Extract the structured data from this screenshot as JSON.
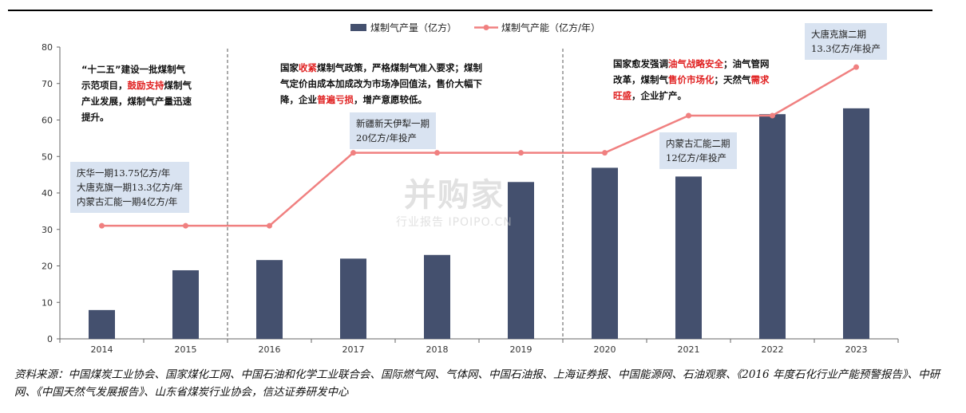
{
  "chart_data": {
    "type": "bar+line",
    "categories": [
      "2014",
      "2015",
      "2016",
      "2017",
      "2018",
      "2019",
      "2020",
      "2021",
      "2022",
      "2023"
    ],
    "series": [
      {
        "name": "煤制气产量（亿方）",
        "type": "bar",
        "color": "#44506e",
        "values": [
          7.9,
          18.8,
          21.6,
          22.0,
          23.0,
          43.0,
          46.9,
          44.5,
          61.6,
          63.2
        ]
      },
      {
        "name": "煤制气产能（亿方/年）",
        "type": "line",
        "color": "#f08080",
        "values": [
          31,
          31,
          31,
          51,
          51,
          51,
          51,
          61.2,
          61.2,
          74.5
        ]
      }
    ],
    "y_ticks": [
      0,
      10,
      20,
      30,
      40,
      50,
      60,
      70,
      80
    ],
    "ylim": [
      0,
      80
    ],
    "title": "",
    "xlabel": "",
    "ylabel": ""
  },
  "annotations": {
    "box1": [
      "庆华一期13.75亿方/年",
      "大唐克旗一期13.3亿方/年",
      "内蒙古汇能一期4亿方/年"
    ],
    "box2": [
      "新疆新天伊犁一期",
      "20亿方/年投产"
    ],
    "box3": [
      "内蒙古汇能二期",
      "12亿方/年投产"
    ],
    "box4": [
      "大唐克旗二期",
      "13.3亿方/年投产"
    ]
  },
  "notes": {
    "n1": [
      [
        {
          "t": "“十二五”建设一批煤制气"
        }
      ],
      [
        {
          "t": "示范项目，"
        },
        {
          "t": "鼓励支持",
          "hl": true
        },
        {
          "t": "煤制气"
        }
      ],
      [
        {
          "t": "产业发展，煤制气产量迅速"
        }
      ],
      [
        {
          "t": "提升。"
        }
      ]
    ],
    "n2": [
      [
        {
          "t": "国家"
        },
        {
          "t": "收紧",
          "hl": true
        },
        {
          "t": "煤制气政策，严格煤制气准入要求；煤制"
        }
      ],
      [
        {
          "t": "气定价由成本加成改为市场净回值法，售价大幅下"
        }
      ],
      [
        {
          "t": "降，企业"
        },
        {
          "t": "普遍亏损",
          "hl": true
        },
        {
          "t": "，增产意愿较低。"
        }
      ]
    ],
    "n3": [
      [
        {
          "t": "国家愈发强调"
        },
        {
          "t": "油气战略安全",
          "hl": true
        },
        {
          "t": "；油气管网"
        }
      ],
      [
        {
          "t": "改革，煤制气"
        },
        {
          "t": "售价市场化",
          "hl": true
        },
        {
          "t": "；天然气"
        },
        {
          "t": "需求",
          "hl": true
        }
      ],
      [
        {
          "t": "旺盛",
          "hl": true
        },
        {
          "t": "，企业扩产。"
        }
      ]
    ]
  },
  "watermark": {
    "main": "并购家",
    "sub": "行业报告 IPOIPO.CN"
  },
  "source": "资料来源：中国煤炭工业协会、国家煤化工网、中国石油和化学工业联合会、国际燃气网、气体网、中国石油报、上海证券报、中国能源网、石油观察、《2016 年度石化行业产能预警报告》、中研网、《中国天然气发展报告》、山东省煤炭行业协会，信达证券研发中心"
}
